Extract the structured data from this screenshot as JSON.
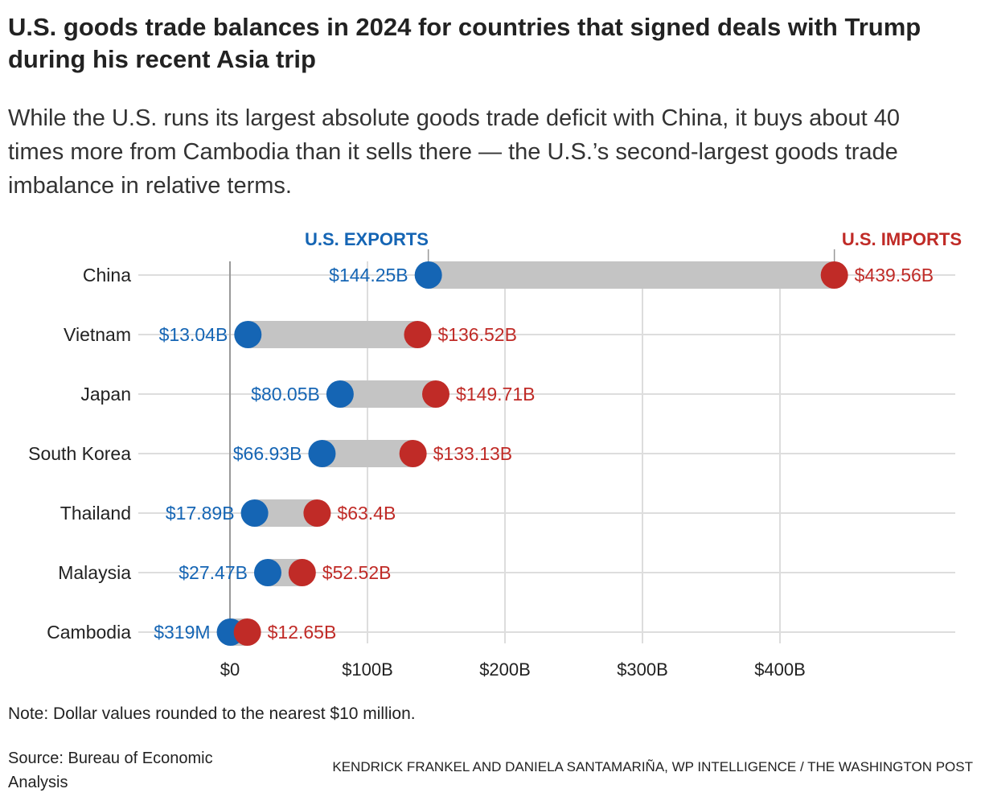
{
  "title": "U.S. goods trade balances in 2024 for countries that signed deals with Trump during his recent Asia trip",
  "subtitle": "While the U.S. runs its largest absolute goods trade deficit with China, it buys about 40 times more from Cambodia than it sells there — the U.S.’s second-largest goods trade imbalance in relative terms.",
  "note": "Note: Dollar values rounded to the nearest $10 million.",
  "source": "Source: Bureau of Economic Analysis",
  "credit": "KENDRICK FRANKEL AND DANIELA SANTAMARIÑA, WP INTELLIGENCE / THE WASHINGTON POST",
  "colors": {
    "exports": "#1565b4",
    "imports": "#c02b27",
    "bar": "#c4c4c4",
    "grid": "#dddddd"
  },
  "chart_data": {
    "type": "dumbbell",
    "xlim": [
      0,
      525
    ],
    "x_ticks": [
      0,
      100,
      200,
      300,
      400
    ],
    "x_tick_labels": [
      "$0",
      "$100B",
      "$200B",
      "$300B",
      "$400B"
    ],
    "grid": true,
    "series": [
      {
        "name": "U.S. EXPORTS",
        "values": [
          144.25,
          13.04,
          80.05,
          66.93,
          17.89,
          27.47,
          0.319
        ],
        "labels": [
          "$144.25B",
          "$13.04B",
          "$80.05B",
          "$66.93B",
          "$17.89B",
          "$27.47B",
          "$319M"
        ]
      },
      {
        "name": "U.S. IMPORTS",
        "values": [
          439.56,
          136.52,
          149.71,
          133.13,
          63.4,
          52.52,
          12.65
        ],
        "labels": [
          "$439.56B",
          "$136.52B",
          "$149.71B",
          "$133.13B",
          "$63.4B",
          "$52.52B",
          "$12.65B"
        ]
      }
    ],
    "categories": [
      "China",
      "Vietnam",
      "Japan",
      "South Korea",
      "Thailand",
      "Malaysia",
      "Cambodia"
    ]
  }
}
